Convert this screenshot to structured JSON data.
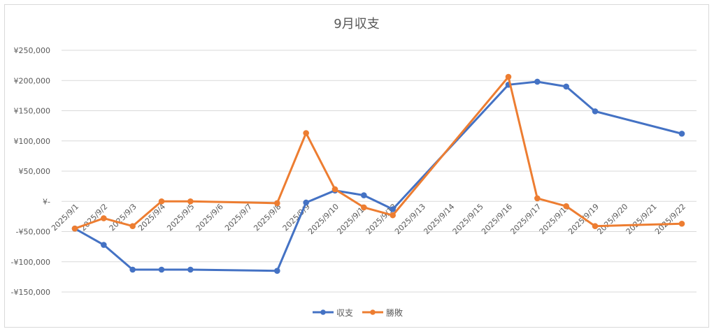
{
  "chart_data": {
    "type": "line",
    "title": "9月収支",
    "categories": [
      "2025/9/1",
      "2025/9/2",
      "2025/9/3",
      "2025/9/4",
      "2025/9/5",
      "2025/9/6",
      "2025/9/7",
      "2025/9/8",
      "2025/9/9",
      "2025/9/10",
      "2025/9/11",
      "2025/9/12",
      "2025/9/13",
      "2025/9/14",
      "2025/9/15",
      "2025/9/16",
      "2025/9/17",
      "2025/9/18",
      "2025/9/19",
      "2025/9/20",
      "2025/9/21",
      "2025/9/22"
    ],
    "y_ticks": [
      {
        "value": 250000,
        "label": "¥250,000"
      },
      {
        "value": 200000,
        "label": "¥200,000"
      },
      {
        "value": 150000,
        "label": "¥150,000"
      },
      {
        "value": 100000,
        "label": "¥100,000"
      },
      {
        "value": 50000,
        "label": "¥50,000"
      },
      {
        "value": 0,
        "label": "¥-"
      },
      {
        "value": -50000,
        "label": "-¥50,000"
      },
      {
        "value": -100000,
        "label": "-¥100,000"
      },
      {
        "value": -150000,
        "label": "-¥150,000"
      }
    ],
    "ylim": [
      -150000,
      250000
    ],
    "grid": true,
    "legend_position": "bottom",
    "series": [
      {
        "name": "収支",
        "color": "#4472c4",
        "values": [
          -45000,
          -72000,
          -113000,
          -113000,
          -113000,
          null,
          null,
          -115000,
          -2000,
          18000,
          10000,
          -13000,
          null,
          null,
          null,
          193000,
          198000,
          190000,
          149000,
          null,
          null,
          112000
        ]
      },
      {
        "name": "勝敗",
        "color": "#ed7d31",
        "values": [
          -45000,
          -28000,
          -41000,
          0,
          0,
          null,
          null,
          -3000,
          113000,
          20000,
          -10000,
          -23000,
          null,
          null,
          null,
          206000,
          5000,
          -8000,
          -41000,
          null,
          null,
          -37000
        ]
      }
    ]
  }
}
